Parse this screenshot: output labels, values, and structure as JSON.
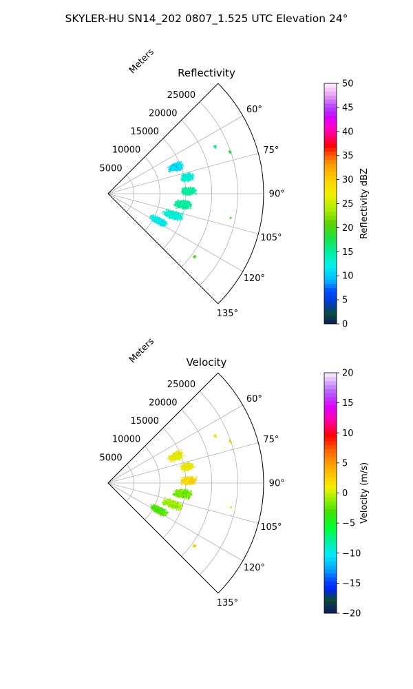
{
  "figure": {
    "suptitle": "SKYLER-HU  SN14_202  0807_1.525 UTC Elevation 24°"
  },
  "chart_data": [
    {
      "type": "heatmap",
      "projection": "polar-sector",
      "title": "Reflectivity",
      "radial_axis_label": "Meters",
      "radial_ticks": [
        5000,
        10000,
        15000,
        20000,
        25000
      ],
      "radial_tick_labels": [
        "5000",
        "10000",
        "15000",
        "20000",
        "25000"
      ],
      "r_max": 30000,
      "theta_range_deg": [
        45,
        135
      ],
      "angle_ticks": [
        60,
        75,
        90,
        105,
        120,
        135
      ],
      "angle_tick_labels": [
        "60°",
        "75°",
        "90°",
        "105°",
        "120°",
        "135°"
      ],
      "spokes_deg": [
        45,
        60,
        75,
        90,
        105,
        120,
        135
      ],
      "grid": true,
      "colorbar": {
        "label": "Reflectivity dBZ",
        "min": 0,
        "max": 50,
        "ticks": [
          0,
          5,
          10,
          15,
          20,
          25,
          30,
          35,
          40,
          45,
          50
        ],
        "tick_labels": [
          "0",
          "5",
          "10",
          "15",
          "20",
          "25",
          "30",
          "35",
          "40",
          "45",
          "50"
        ],
        "colormap": "pyart_NWSRef-like"
      },
      "echo_regions": [
        {
          "az_deg": 68,
          "range_m": 14000,
          "az_width_deg": 8,
          "range_width_m": 3500,
          "value": 11
        },
        {
          "az_deg": 78,
          "range_m": 15500,
          "az_width_deg": 7,
          "range_width_m": 3000,
          "value": 13
        },
        {
          "az_deg": 88,
          "range_m": 15500,
          "az_width_deg": 7,
          "range_width_m": 3500,
          "value": 15
        },
        {
          "az_deg": 98,
          "range_m": 14500,
          "az_width_deg": 8,
          "range_width_m": 4000,
          "value": 15
        },
        {
          "az_deg": 108,
          "range_m": 13000,
          "az_width_deg": 8,
          "range_width_m": 4500,
          "value": 13
        },
        {
          "az_deg": 118,
          "range_m": 11000,
          "az_width_deg": 8,
          "range_width_m": 4000,
          "value": 12
        },
        {
          "az_deg": 66,
          "range_m": 22500,
          "az_width_deg": 2,
          "range_width_m": 600,
          "value": 15
        },
        {
          "az_deg": 71,
          "range_m": 24800,
          "az_width_deg": 2,
          "range_width_m": 500,
          "value": 18
        },
        {
          "az_deg": 101,
          "range_m": 24000,
          "az_width_deg": 1,
          "range_width_m": 400,
          "value": 20
        },
        {
          "az_deg": 126,
          "range_m": 20500,
          "az_width_deg": 2,
          "range_width_m": 600,
          "value": 20
        }
      ]
    },
    {
      "type": "heatmap",
      "projection": "polar-sector",
      "title": "Velocity",
      "radial_axis_label": "Meters",
      "radial_ticks": [
        5000,
        10000,
        15000,
        20000,
        25000
      ],
      "radial_tick_labels": [
        "5000",
        "10000",
        "15000",
        "20000",
        "25000"
      ],
      "r_max": 30000,
      "theta_range_deg": [
        45,
        135
      ],
      "angle_ticks": [
        60,
        75,
        90,
        105,
        120,
        135
      ],
      "angle_tick_labels": [
        "60°",
        "75°",
        "90°",
        "105°",
        "120°",
        "135°"
      ],
      "spokes_deg": [
        45,
        60,
        75,
        90,
        105,
        120,
        135
      ],
      "grid": true,
      "colorbar": {
        "label": "Velocity (m/s)",
        "min": -20,
        "max": 20,
        "ticks": [
          -20,
          -15,
          -10,
          -5,
          0,
          5,
          10,
          15,
          20
        ],
        "tick_labels": [
          "−20",
          "−15",
          "−10",
          "−5",
          "0",
          "5",
          "10",
          "15",
          "20"
        ],
        "colormap": "pyart_BuDRd-like"
      },
      "echo_regions": [
        {
          "az_deg": 68,
          "range_m": 14000,
          "az_width_deg": 8,
          "range_width_m": 3500,
          "value": 1
        },
        {
          "az_deg": 78,
          "range_m": 15500,
          "az_width_deg": 7,
          "range_width_m": 3000,
          "value": 1
        },
        {
          "az_deg": 88,
          "range_m": 15500,
          "az_width_deg": 7,
          "range_width_m": 3500,
          "value": 2
        },
        {
          "az_deg": 98,
          "range_m": 14500,
          "az_width_deg": 8,
          "range_width_m": 4000,
          "value": -2
        },
        {
          "az_deg": 108,
          "range_m": 13000,
          "az_width_deg": 8,
          "range_width_m": 4500,
          "value": -1
        },
        {
          "az_deg": 118,
          "range_m": 11000,
          "az_width_deg": 8,
          "range_width_m": 4000,
          "value": -3
        },
        {
          "az_deg": 66,
          "range_m": 22500,
          "az_width_deg": 2,
          "range_width_m": 600,
          "value": 2
        },
        {
          "az_deg": 71,
          "range_m": 24800,
          "az_width_deg": 2,
          "range_width_m": 500,
          "value": 3
        },
        {
          "az_deg": 101,
          "range_m": 24000,
          "az_width_deg": 1,
          "range_width_m": 400,
          "value": 2
        },
        {
          "az_deg": 126,
          "range_m": 20500,
          "az_width_deg": 2,
          "range_width_m": 600,
          "value": 3
        }
      ]
    }
  ]
}
